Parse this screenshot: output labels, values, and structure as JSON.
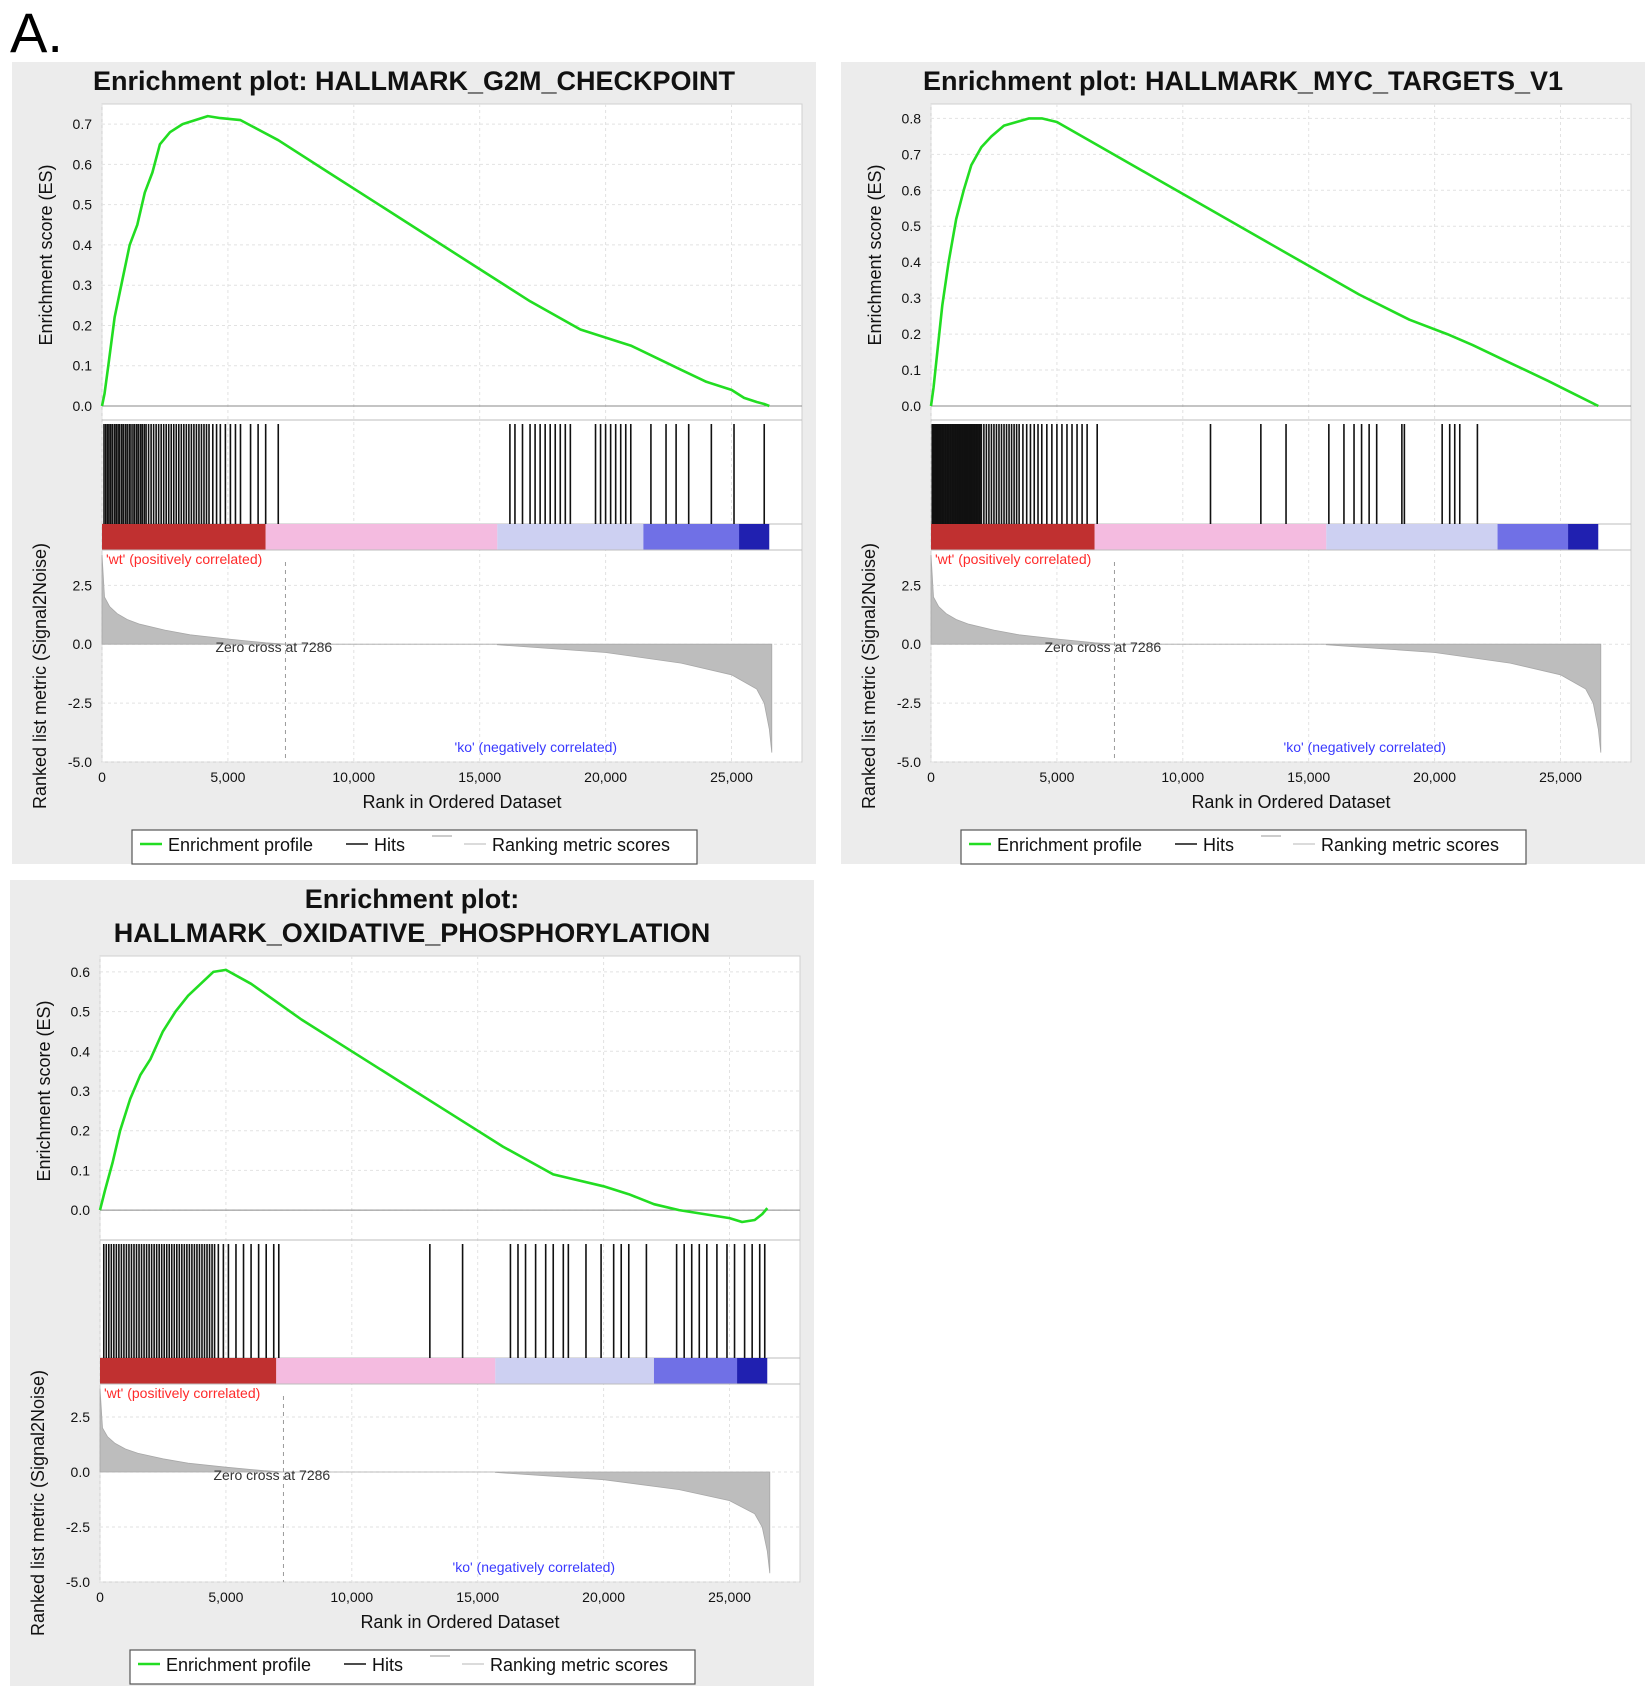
{
  "figure": {
    "panel_label": "A."
  },
  "legend": {
    "enrichment_profile": "Enrichment profile",
    "hits": "Hits",
    "ranking_metric": "Ranking metric scores"
  },
  "colors": {
    "es_line": "#22dd22",
    "metric_fill": "#bdbdbd",
    "pos_label": "#ff2a2a",
    "neg_label": "#3a3aff",
    "panel_bg": "#ececec"
  },
  "chart_data": [
    {
      "type": "line",
      "title": "Enrichment plot: HALLMARK_G2M_CHECKPOINT",
      "xlabel": "Rank in Ordered Dataset",
      "ylabel_es": "Enrichment score (ES)",
      "ylabel_metric": "Ranked list metric (Signal2Noise)",
      "pos_label": "'wt' (positively correlated)",
      "neg_label": "'ko' (negatively correlated)",
      "zero_cross_label": "Zero cross at 7286",
      "zero_cross": 7286,
      "xlim": [
        0,
        27800
      ],
      "x_ticks": [
        0,
        5000,
        10000,
        15000,
        20000,
        25000
      ],
      "x_tick_labels": [
        "0",
        "5,000",
        "10,000",
        "15,000",
        "20,000",
        "25,000"
      ],
      "es_ylim": [
        0.0,
        0.75
      ],
      "es_ticks": [
        0.0,
        0.1,
        0.2,
        0.3,
        0.4,
        0.5,
        0.6,
        0.7
      ],
      "es_tick_labels": [
        "0.0",
        "0.1",
        "0.2",
        "0.3",
        "0.4",
        "0.5",
        "0.6",
        "0.7"
      ],
      "metric_ylim": [
        -5.0,
        4.0
      ],
      "metric_ticks": [
        2.5,
        0.0,
        -2.5,
        -5.0
      ],
      "metric_tick_labels": [
        "2.5",
        "0.0",
        "-2.5",
        "-5.0"
      ],
      "es_curve": {
        "x": [
          0,
          100,
          250,
          500,
          800,
          1100,
          1400,
          1700,
          2000,
          2300,
          2700,
          3200,
          3700,
          4200,
          4700,
          5500,
          7000,
          9000,
          11000,
          13000,
          15000,
          17000,
          19000,
          20500,
          21000,
          22000,
          23000,
          24000,
          25000,
          25500,
          26000,
          26300,
          26500
        ],
        "y": [
          0.0,
          0.03,
          0.1,
          0.22,
          0.31,
          0.4,
          0.45,
          0.53,
          0.58,
          0.65,
          0.68,
          0.7,
          0.71,
          0.72,
          0.715,
          0.71,
          0.66,
          0.58,
          0.5,
          0.42,
          0.34,
          0.26,
          0.19,
          0.16,
          0.15,
          0.12,
          0.09,
          0.06,
          0.04,
          0.02,
          0.01,
          0.005,
          0.0
        ]
      },
      "hits": [
        80,
        150,
        220,
        280,
        350,
        420,
        500,
        570,
        640,
        700,
        780,
        850,
        930,
        1000,
        1080,
        1150,
        1230,
        1300,
        1380,
        1450,
        1530,
        1600,
        1680,
        1750,
        1850,
        1950,
        2050,
        2150,
        2250,
        2350,
        2450,
        2550,
        2650,
        2750,
        2850,
        2950,
        3050,
        3150,
        3250,
        3350,
        3450,
        3550,
        3650,
        3750,
        3850,
        3950,
        4050,
        4150,
        4250,
        4400,
        4550,
        4700,
        4900,
        5100,
        5300,
        5500,
        5900,
        6200,
        6500,
        7000,
        16200,
        16400,
        16700,
        17000,
        17200,
        17400,
        17600,
        17800,
        18000,
        18200,
        18400,
        18600,
        19600,
        19800,
        20000,
        20200,
        20400,
        20600,
        20800,
        21000,
        21800,
        22400,
        22800,
        23300,
        24200,
        25100,
        26300
      ],
      "metric_curve": {
        "x": [
          0,
          100,
          300,
          600,
          1000,
          1500,
          2500,
          3500,
          5000,
          6500,
          7286,
          15700,
          15700,
          20000,
          23000,
          25000,
          26000,
          26300,
          26500,
          26600
        ],
        "y": [
          3.8,
          2.0,
          1.6,
          1.3,
          1.05,
          0.85,
          0.6,
          0.4,
          0.22,
          0.06,
          0.0,
          0.0,
          -0.02,
          -0.35,
          -0.8,
          -1.3,
          -1.9,
          -2.5,
          -3.6,
          -4.6
        ]
      },
      "color_bar": [
        {
          "from": 0,
          "to": 6500,
          "color": "#c03030"
        },
        {
          "from": 6500,
          "to": 15700,
          "color": "#f4bbe0"
        },
        {
          "from": 15700,
          "to": 21500,
          "color": "#cdd0f2"
        },
        {
          "from": 21500,
          "to": 25300,
          "color": "#7070e6"
        },
        {
          "from": 25300,
          "to": 26500,
          "color": "#2020b0"
        }
      ]
    },
    {
      "type": "line",
      "title": "Enrichment plot: HALLMARK_MYC_TARGETS_V1",
      "xlabel": "Rank in Ordered Dataset",
      "ylabel_es": "Enrichment score (ES)",
      "ylabel_metric": "Ranked list metric (Signal2Noise)",
      "pos_label": "'wt' (positively correlated)",
      "neg_label": "'ko' (negatively correlated)",
      "zero_cross_label": "Zero cross at 7286",
      "zero_cross": 7286,
      "xlim": [
        0,
        27800
      ],
      "x_ticks": [
        0,
        5000,
        10000,
        15000,
        20000,
        25000
      ],
      "x_tick_labels": [
        "0",
        "5,000",
        "10,000",
        "15,000",
        "20,000",
        "25,000"
      ],
      "es_ylim": [
        0.0,
        0.84
      ],
      "es_ticks": [
        0.0,
        0.1,
        0.2,
        0.3,
        0.4,
        0.5,
        0.6,
        0.7,
        0.8
      ],
      "es_tick_labels": [
        "0.0",
        "0.1",
        "0.2",
        "0.3",
        "0.4",
        "0.5",
        "0.6",
        "0.7",
        "0.8"
      ],
      "metric_ylim": [
        -5.0,
        4.0
      ],
      "metric_ticks": [
        2.5,
        0.0,
        -2.5,
        -5.0
      ],
      "metric_tick_labels": [
        "2.5",
        "0.0",
        "-2.5",
        "-5.0"
      ],
      "es_curve": {
        "x": [
          0,
          100,
          250,
          450,
          700,
          1000,
          1300,
          1600,
          2000,
          2400,
          2900,
          3400,
          3900,
          4400,
          5000,
          7000,
          9000,
          11000,
          13000,
          15000,
          17000,
          19000,
          20500,
          21500,
          23000,
          24500,
          25500,
          26500
        ],
        "y": [
          0.0,
          0.05,
          0.15,
          0.28,
          0.4,
          0.52,
          0.6,
          0.67,
          0.72,
          0.75,
          0.78,
          0.79,
          0.8,
          0.8,
          0.79,
          0.71,
          0.63,
          0.55,
          0.47,
          0.39,
          0.31,
          0.24,
          0.2,
          0.17,
          0.12,
          0.07,
          0.035,
          0.0
        ]
      },
      "hits": [
        50,
        100,
        150,
        200,
        250,
        300,
        350,
        400,
        450,
        500,
        550,
        600,
        650,
        700,
        750,
        800,
        850,
        900,
        950,
        1000,
        1050,
        1100,
        1150,
        1200,
        1250,
        1300,
        1350,
        1400,
        1450,
        1500,
        1550,
        1600,
        1650,
        1700,
        1750,
        1800,
        1850,
        1900,
        1950,
        2000,
        2100,
        2200,
        2300,
        2400,
        2500,
        2600,
        2700,
        2800,
        2900,
        3000,
        3100,
        3200,
        3300,
        3400,
        3500,
        3650,
        3800,
        3950,
        4100,
        4250,
        4400,
        4600,
        4800,
        5000,
        5200,
        5400,
        5600,
        5800,
        6000,
        6200,
        6600,
        11100,
        13100,
        14100,
        15800,
        16400,
        16800,
        17100,
        17400,
        17700,
        18700,
        18800,
        20300,
        20600,
        20800,
        21000,
        21700
      ],
      "metric_curve": {
        "x": [
          0,
          100,
          300,
          600,
          1000,
          1500,
          2500,
          3500,
          5000,
          6500,
          7286,
          15700,
          15700,
          20000,
          23000,
          25000,
          26000,
          26300,
          26500,
          26600
        ],
        "y": [
          3.8,
          2.0,
          1.6,
          1.3,
          1.05,
          0.85,
          0.6,
          0.4,
          0.22,
          0.06,
          0.0,
          0.0,
          -0.02,
          -0.35,
          -0.8,
          -1.3,
          -1.9,
          -2.5,
          -3.6,
          -4.6
        ]
      },
      "color_bar": [
        {
          "from": 0,
          "to": 6500,
          "color": "#c03030"
        },
        {
          "from": 6500,
          "to": 15700,
          "color": "#f4bbe0"
        },
        {
          "from": 15700,
          "to": 22500,
          "color": "#cdd0f2"
        },
        {
          "from": 22500,
          "to": 25300,
          "color": "#7070e6"
        },
        {
          "from": 25300,
          "to": 26500,
          "color": "#2020b0"
        }
      ]
    },
    {
      "type": "line",
      "title_lines": [
        "Enrichment plot:",
        "HALLMARK_OXIDATIVE_PHOSPHORYLATION"
      ],
      "xlabel": "Rank in Ordered Dataset",
      "ylabel_es": "Enrichment score (ES)",
      "ylabel_metric": "Ranked list metric (Signal2Noise)",
      "pos_label": "'wt' (positively correlated)",
      "neg_label": "'ko' (negatively correlated)",
      "zero_cross_label": "Zero cross at 7286",
      "zero_cross": 7286,
      "xlim": [
        0,
        27800
      ],
      "x_ticks": [
        0,
        5000,
        10000,
        15000,
        20000,
        25000
      ],
      "x_tick_labels": [
        "0",
        "5,000",
        "10,000",
        "15,000",
        "20,000",
        "25,000"
      ],
      "es_ylim": [
        -0.04,
        0.64
      ],
      "es_ticks": [
        0.0,
        0.1,
        0.2,
        0.3,
        0.4,
        0.5,
        0.6
      ],
      "es_tick_labels": [
        "0.0",
        "0.1",
        "0.2",
        "0.3",
        "0.4",
        "0.5",
        "0.6"
      ],
      "metric_ylim": [
        -5.0,
        4.0
      ],
      "metric_ticks": [
        2.5,
        0.0,
        -2.5,
        -5.0
      ],
      "metric_tick_labels": [
        "2.5",
        "0.0",
        "-2.5",
        "-5.0"
      ],
      "es_curve": {
        "x": [
          0,
          200,
          500,
          800,
          1200,
          1600,
          2000,
          2500,
          3000,
          3500,
          4000,
          4500,
          5000,
          6000,
          8000,
          10000,
          12000,
          14000,
          16000,
          18000,
          20000,
          21000,
          22000,
          23000,
          24000,
          25000,
          25500,
          26000,
          26300,
          26500
        ],
        "y": [
          0.0,
          0.05,
          0.12,
          0.2,
          0.28,
          0.34,
          0.38,
          0.45,
          0.5,
          0.54,
          0.57,
          0.6,
          0.605,
          0.57,
          0.48,
          0.4,
          0.32,
          0.24,
          0.16,
          0.09,
          0.06,
          0.04,
          0.015,
          0.0,
          -0.01,
          -0.02,
          -0.03,
          -0.025,
          -0.01,
          0.005
        ]
      },
      "hits": [
        150,
        250,
        350,
        450,
        550,
        650,
        750,
        850,
        950,
        1050,
        1150,
        1250,
        1350,
        1450,
        1550,
        1650,
        1750,
        1850,
        1950,
        2050,
        2150,
        2250,
        2350,
        2450,
        2550,
        2650,
        2750,
        2850,
        2950,
        3050,
        3150,
        3250,
        3350,
        3450,
        3550,
        3650,
        3750,
        3850,
        3950,
        4050,
        4150,
        4250,
        4350,
        4450,
        4550,
        4700,
        4900,
        5100,
        5400,
        5700,
        6000,
        6300,
        6600,
        6900,
        7100,
        13100,
        14400,
        16300,
        16600,
        16900,
        17300,
        17700,
        18000,
        18400,
        18600,
        19300,
        19900,
        20400,
        20700,
        21000,
        21700,
        22900,
        23200,
        23500,
        23800,
        24100,
        24500,
        24900,
        25200,
        25600,
        25900,
        26200,
        26400
      ],
      "metric_curve": {
        "x": [
          0,
          100,
          300,
          600,
          1000,
          1500,
          2500,
          3500,
          5000,
          6500,
          7286,
          15700,
          15700,
          20000,
          23000,
          25000,
          26000,
          26300,
          26500,
          26600
        ],
        "y": [
          3.8,
          2.0,
          1.6,
          1.3,
          1.05,
          0.85,
          0.6,
          0.4,
          0.22,
          0.06,
          0.0,
          0.0,
          -0.02,
          -0.35,
          -0.8,
          -1.3,
          -1.9,
          -2.5,
          -3.6,
          -4.6
        ]
      },
      "color_bar": [
        {
          "from": 0,
          "to": 7000,
          "color": "#c03030"
        },
        {
          "from": 7000,
          "to": 15700,
          "color": "#f4bbe0"
        },
        {
          "from": 15700,
          "to": 22000,
          "color": "#cdd0f2"
        },
        {
          "from": 22000,
          "to": 25300,
          "color": "#7070e6"
        },
        {
          "from": 25300,
          "to": 26500,
          "color": "#2020b0"
        }
      ]
    }
  ]
}
